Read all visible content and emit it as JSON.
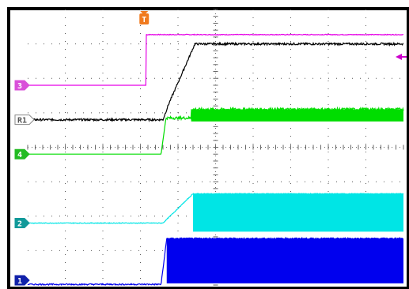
{
  "chart_data": {
    "type": "line",
    "title": "",
    "xlabel": "",
    "ylabel": "",
    "grid": true,
    "x_divisions": 10,
    "y_divisions": 8,
    "trigger": {
      "label": "T",
      "color": "#f07a1e",
      "time_div": 3.1,
      "offset_marker_color": "#cc00cc"
    },
    "series": [
      {
        "name": "3",
        "color": "#e600e6",
        "label_color": "#d94fd9",
        "ground_div": 5.8,
        "points": [
          [
            0,
            5.8
          ],
          [
            3.15,
            5.8
          ],
          [
            3.15,
            7.27
          ],
          [
            10,
            7.27
          ]
        ],
        "noise": 0.01,
        "noise_from": 3.15
      },
      {
        "name": "R1",
        "color": "#000000",
        "label_color": "#ffffff",
        "ground_div": 4.8,
        "points": [
          [
            0,
            4.8
          ],
          [
            3.6,
            4.8
          ],
          [
            3.75,
            5.25
          ],
          [
            4.45,
            7.0
          ],
          [
            10,
            7.0
          ]
        ],
        "noise": 0.03,
        "noise_from": 0
      },
      {
        "name": "4",
        "color": "#00dd00",
        "label_color": "#22bb22",
        "ground_div": 3.8,
        "points": [
          [
            0,
            3.8
          ],
          [
            3.55,
            3.8
          ],
          [
            3.68,
            4.85
          ],
          [
            4.35,
            4.85
          ],
          [
            4.35,
            5.1
          ],
          [
            10,
            5.1
          ]
        ],
        "noise": 0.04,
        "noise_from": 3.68,
        "band_from": 4.35,
        "band_height": 0.35
      },
      {
        "name": "2",
        "color": "#00e5e5",
        "label_color": "#119999",
        "ground_div": 1.8,
        "points": [
          [
            0,
            1.8
          ],
          [
            3.6,
            1.8
          ],
          [
            4.4,
            2.65
          ],
          [
            10,
            2.65
          ]
        ],
        "noise": 0.01,
        "noise_from": 0,
        "band_from": 4.4,
        "band_height": 1.1
      },
      {
        "name": "1",
        "color": "#0000ee",
        "label_color": "#1122aa",
        "ground_div": 0,
        "points": [
          [
            0,
            0.02
          ],
          [
            3.55,
            0.02
          ],
          [
            3.7,
            1.35
          ],
          [
            10,
            1.35
          ]
        ],
        "noise": 0.02,
        "noise_from": 0,
        "band_from": 3.7,
        "band_height": 1.3
      }
    ]
  }
}
